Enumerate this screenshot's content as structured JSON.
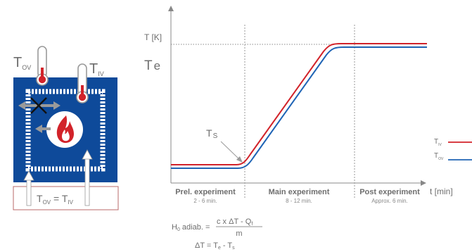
{
  "colors": {
    "vessel_blue": "#0e4a9a",
    "inner_vessel_red": "#d2232a",
    "outer_vessel_blue": "#1f64b5",
    "axis_gray": "#888888",
    "text_gray": "#6e6e6e",
    "box_red": "#b86a6a"
  },
  "apparatus": {
    "label_outer": {
      "main": "T",
      "sub": "OV"
    },
    "label_inner": {
      "main": "T",
      "sub": "IV"
    },
    "equation": {
      "left_main": "T",
      "left_sub": "OV",
      "eq": " = ",
      "right_main": "T",
      "right_sub": "IV"
    },
    "icons": [
      "thermometer-outer-icon",
      "thermometer-inner-icon",
      "heat-flow-blocked-icon",
      "flame-icon",
      "arrow-left-icon",
      "arrow-up-icon"
    ]
  },
  "chart_data": {
    "type": "line",
    "ylabel": "T [K]",
    "xlabel": "t [min]",
    "te_label": {
      "main": "T",
      "sub": "e"
    },
    "ts_label": {
      "main": "T",
      "sub": "S"
    },
    "phases": [
      {
        "name": "Prel. experiment",
        "duration": "2 - 6 min."
      },
      {
        "name": "Main experiment",
        "duration": "8 - 12 min."
      },
      {
        "name": "Post experiment",
        "duration": "Approx. 6 min."
      }
    ],
    "series": [
      {
        "name_main": "T",
        "name_sub": "IV",
        "color": "#d2232a"
      },
      {
        "name_main": "T",
        "name_sub": "OV",
        "color": "#1f64b5"
      }
    ]
  },
  "formulas": {
    "h_prefix": "H",
    "h_sub": "0",
    "h_suffix": " adiab. = ",
    "numerator": "c x ΔT - Q",
    "numerator_sub": "f",
    "denominator": "m",
    "delta_lhs": "ΔT = T",
    "delta_sub_e": "e",
    "delta_mid": " - T",
    "delta_sub_s": "s"
  }
}
